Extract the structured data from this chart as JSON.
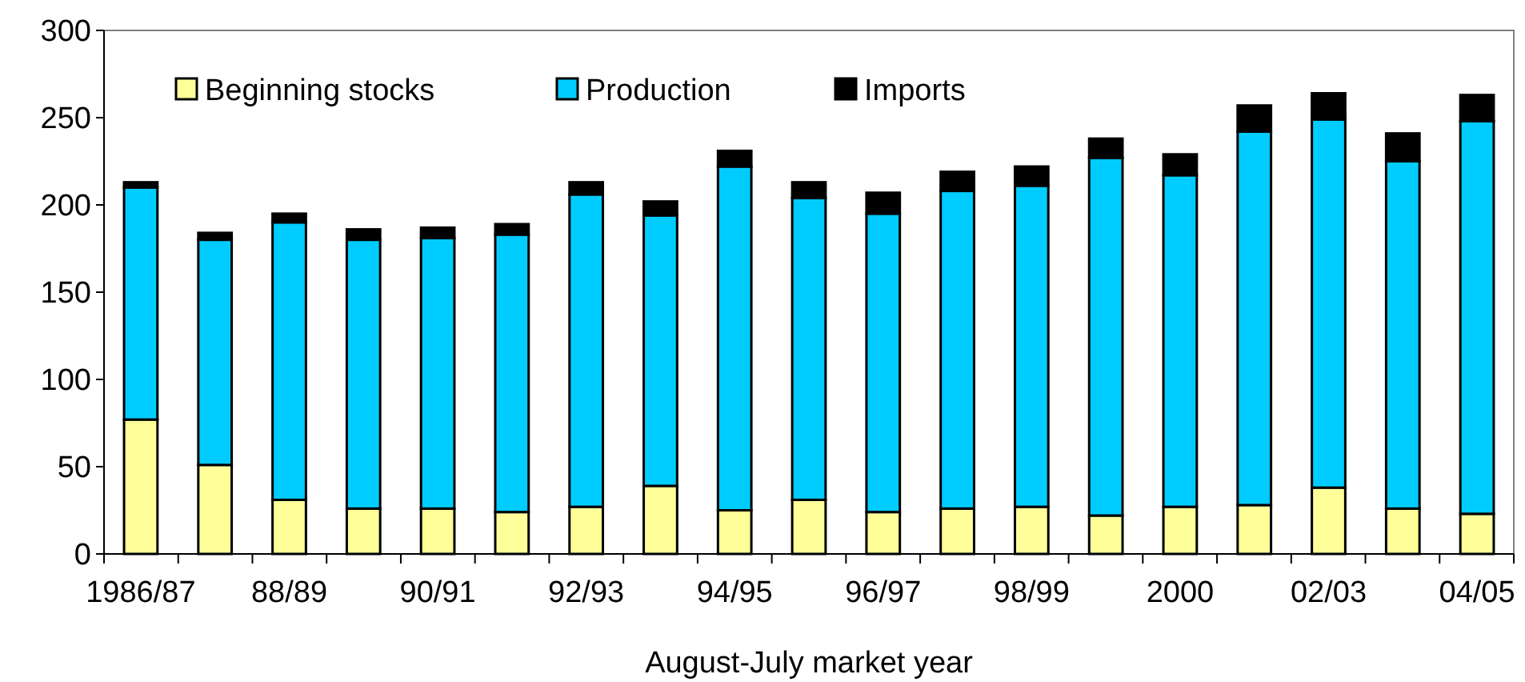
{
  "chart_data": {
    "type": "bar",
    "stacked": true,
    "xlabel": "August-July market year",
    "categories": [
      "1986/87",
      null,
      "88/89",
      null,
      "90/91",
      null,
      "92/93",
      null,
      "94/95",
      null,
      "96/97",
      null,
      "98/99",
      null,
      "2000",
      null,
      "02/03",
      null,
      "04/05"
    ],
    "series": [
      {
        "name": "Beginning stocks",
        "color": "#ffff99",
        "values": [
          77,
          51,
          31,
          26,
          26,
          24,
          27,
          39,
          25,
          31,
          24,
          26,
          27,
          22,
          27,
          28,
          38,
          26,
          23
        ]
      },
      {
        "name": "Production",
        "color": "#00ccff",
        "values": [
          133,
          129,
          159,
          154,
          155,
          159,
          179,
          155,
          197,
          173,
          171,
          182,
          184,
          205,
          190,
          214,
          211,
          199,
          225
        ]
      },
      {
        "name": "Imports",
        "color": "#000000",
        "values": [
          3,
          4,
          5,
          6,
          6,
          6,
          7,
          8,
          9,
          9,
          12,
          11,
          11,
          11,
          12,
          15,
          15,
          16,
          15
        ]
      }
    ],
    "ylim": [
      0,
      300
    ],
    "yticks": [
      0,
      50,
      100,
      150,
      200,
      250,
      300
    ],
    "grid": false,
    "legend": "top left"
  }
}
